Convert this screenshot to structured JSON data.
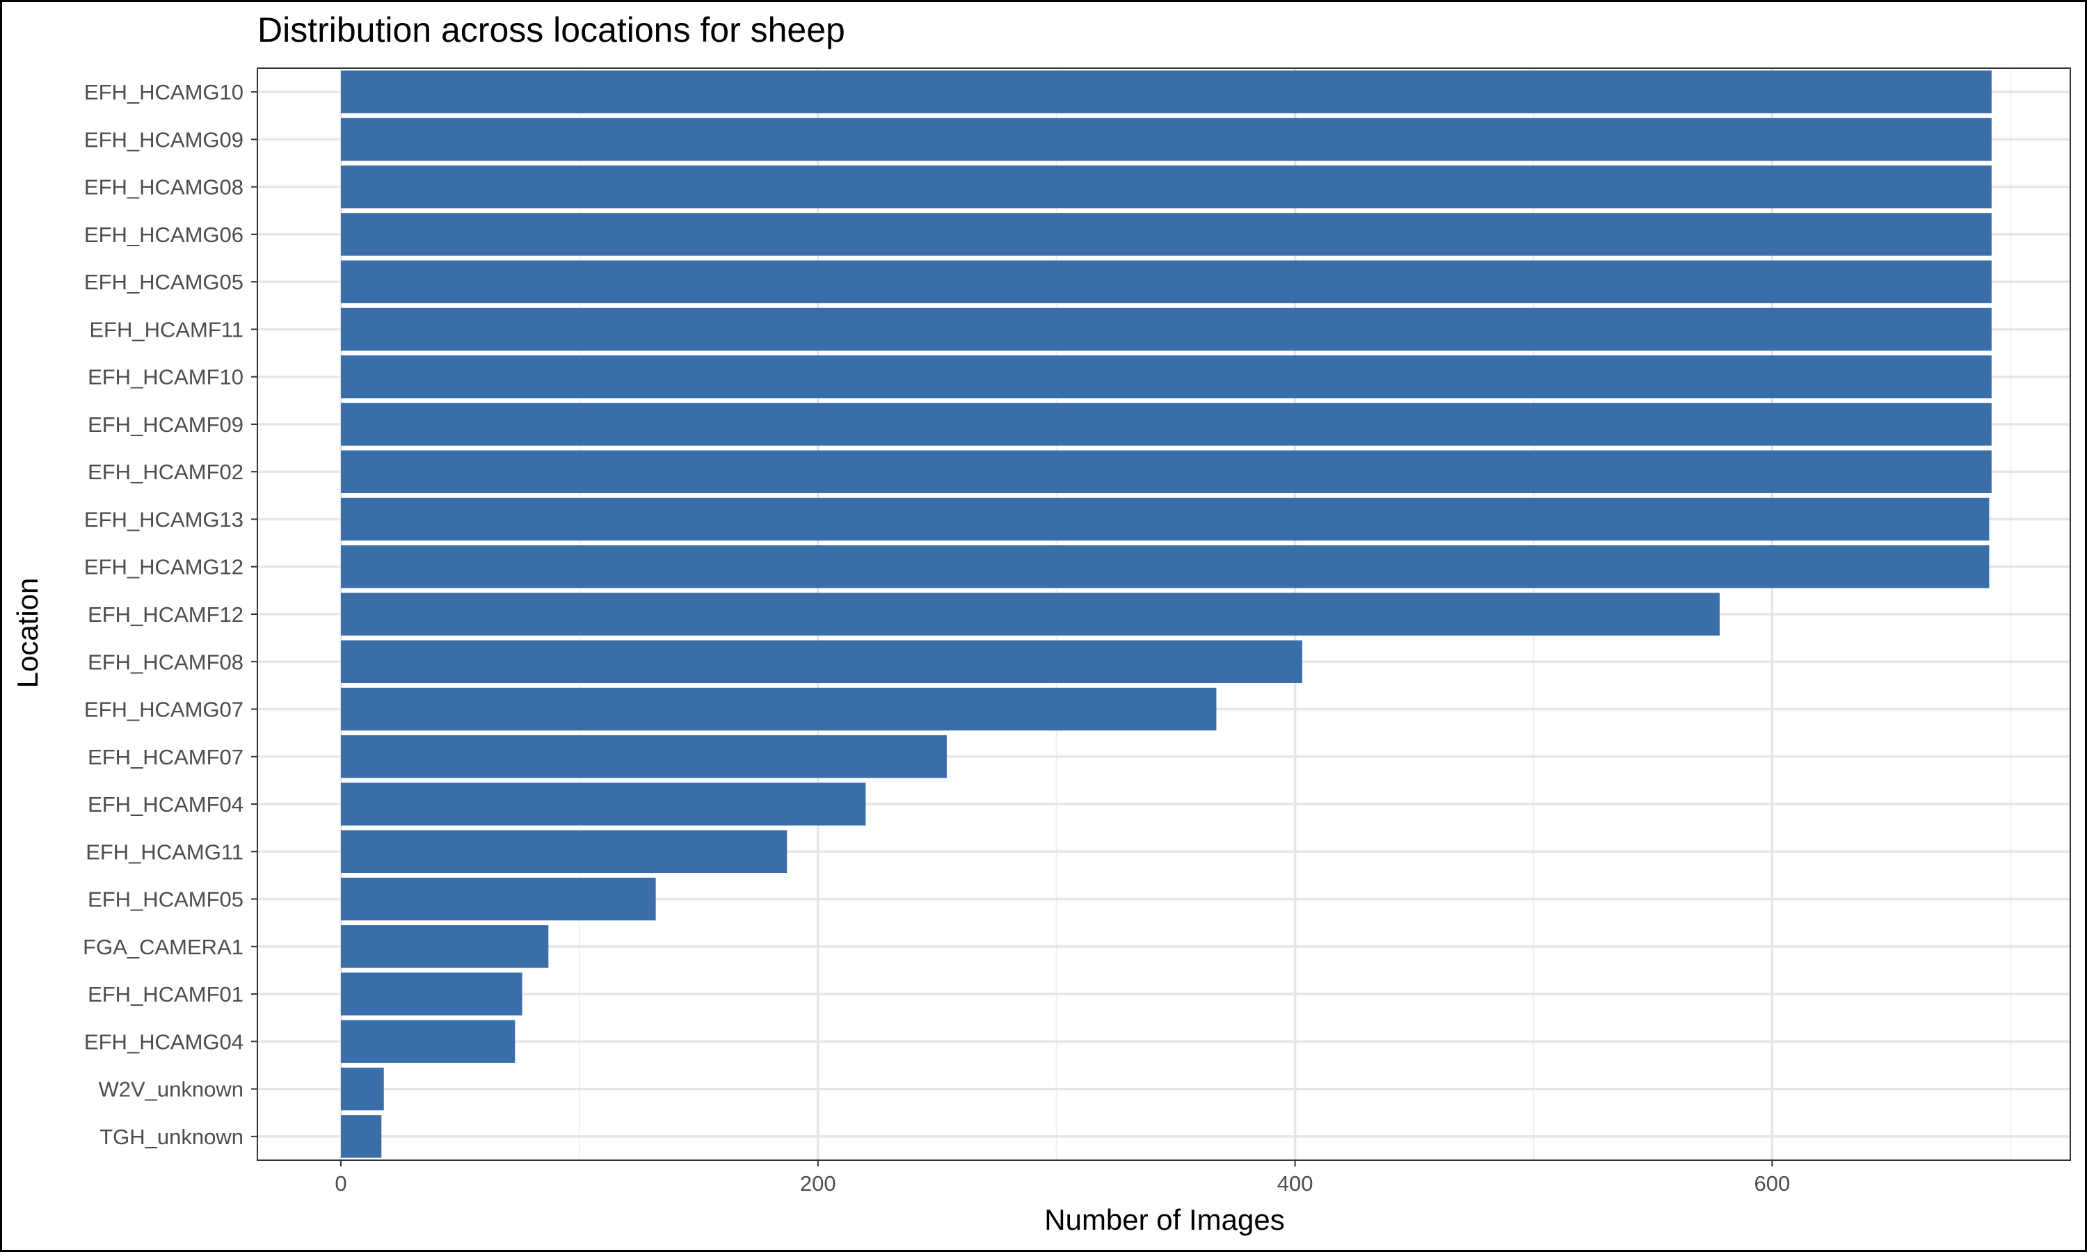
{
  "chart_data": {
    "type": "bar",
    "orientation": "horizontal",
    "title": "Distribution across locations for sheep",
    "xlabel": "Number of Images",
    "ylabel": "Location",
    "xlim": [
      -35,
      725
    ],
    "xticks": [
      0,
      200,
      400,
      600
    ],
    "grid": true,
    "bar_color": "#3A6EA8",
    "categories": [
      "EFH_HCAMG10",
      "EFH_HCAMG09",
      "EFH_HCAMG08",
      "EFH_HCAMG06",
      "EFH_HCAMG05",
      "EFH_HCAMF11",
      "EFH_HCAMF10",
      "EFH_HCAMF09",
      "EFH_HCAMF02",
      "EFH_HCAMG13",
      "EFH_HCAMG12",
      "EFH_HCAMF12",
      "EFH_HCAMF08",
      "EFH_HCAMG07",
      "EFH_HCAMF07",
      "EFH_HCAMF04",
      "EFH_HCAMG11",
      "EFH_HCAMF05",
      "FGA_CAMERA1",
      "EFH_HCAMF01",
      "EFH_HCAMG04",
      "W2V_unknown",
      "TGH_unknown"
    ],
    "values": [
      692,
      692,
      692,
      692,
      692,
      692,
      692,
      692,
      692,
      691,
      691,
      578,
      403,
      367,
      254,
      220,
      187,
      132,
      87,
      76,
      73,
      18,
      17
    ]
  }
}
